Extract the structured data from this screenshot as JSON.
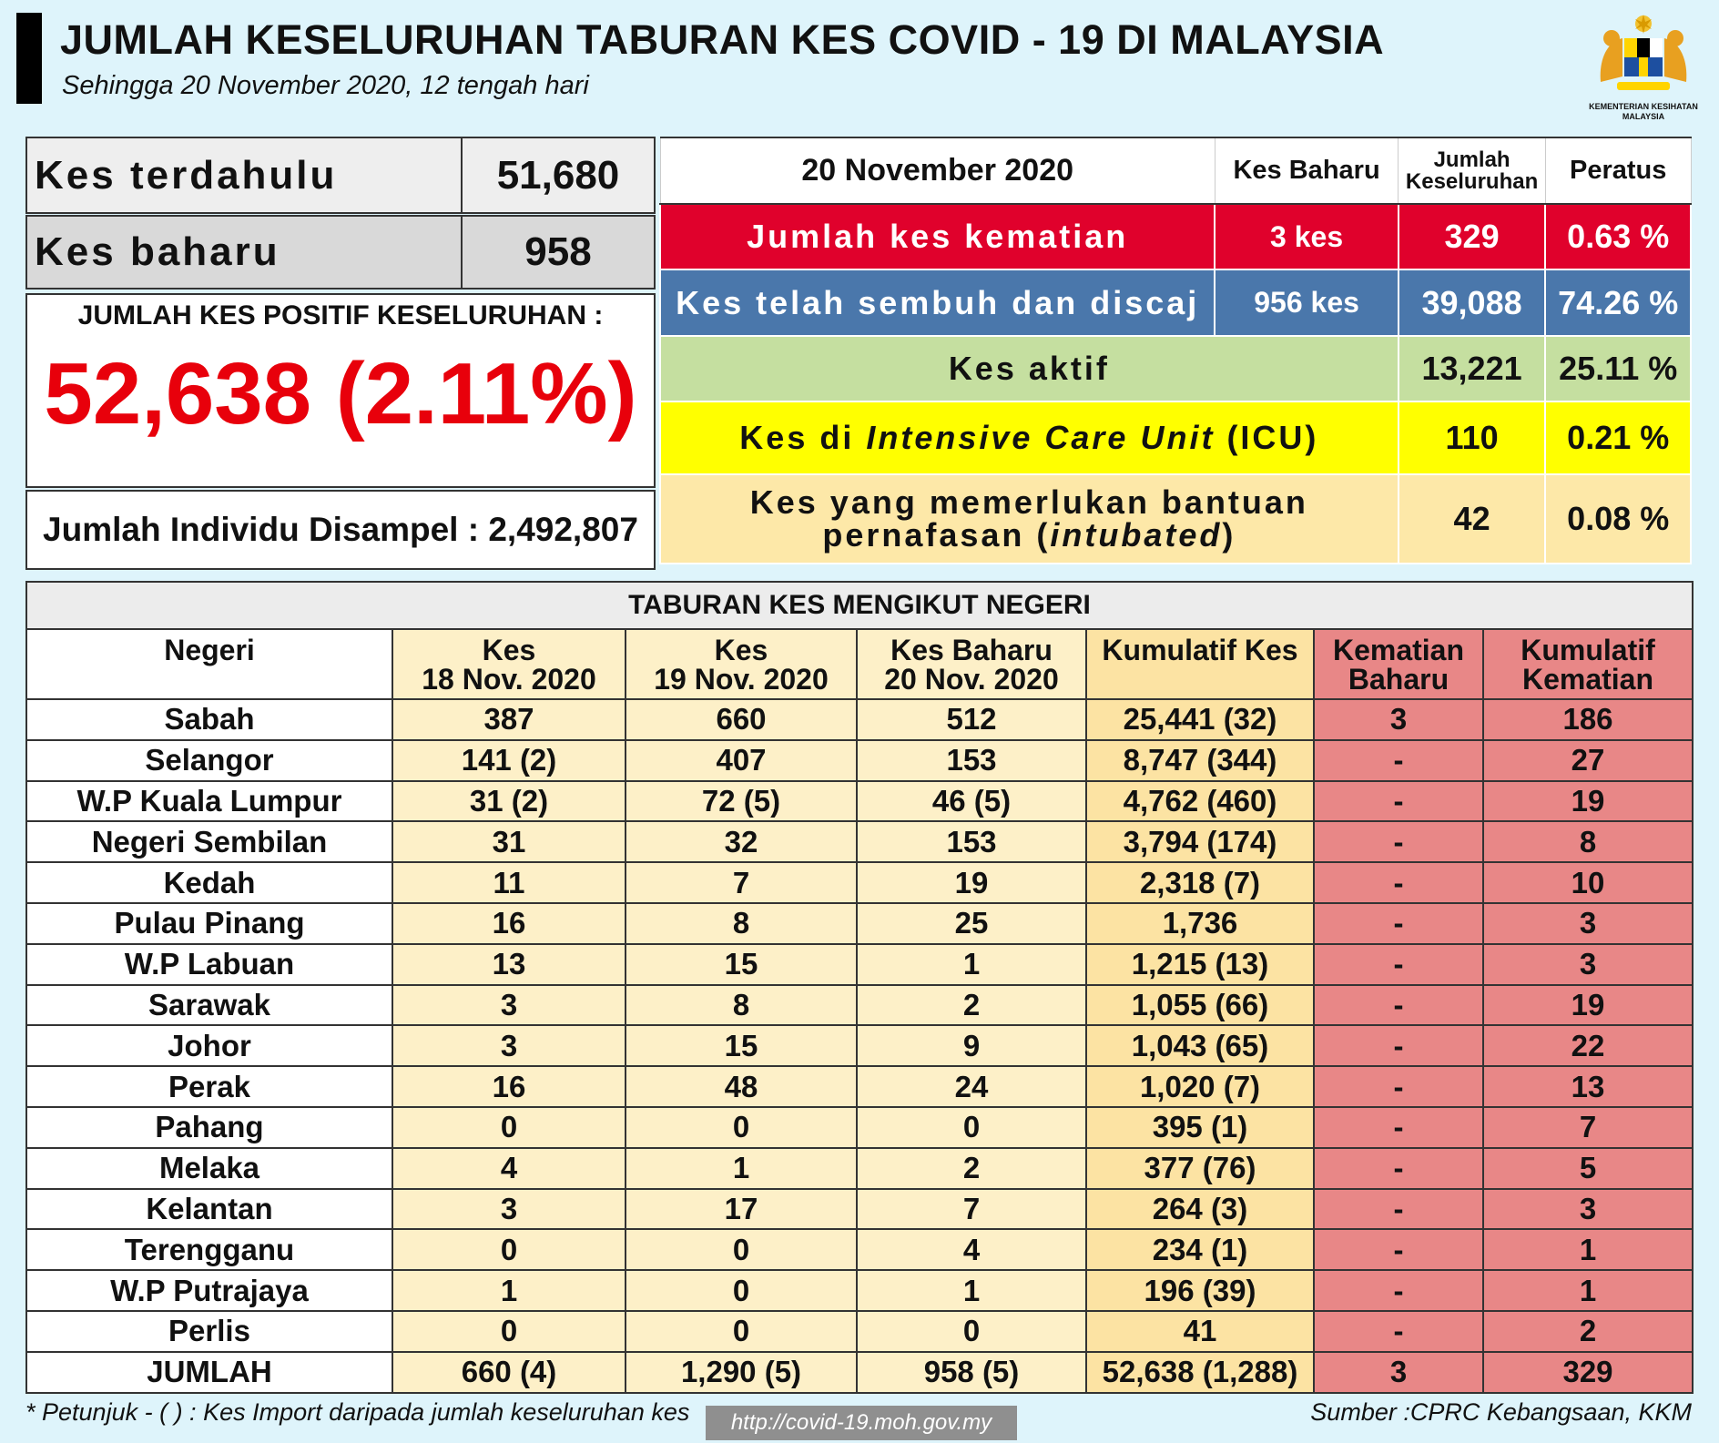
{
  "header": {
    "title": "JUMLAH KESELURUHAN TABURAN KES COVID - 19 DI MALAYSIA",
    "subtitle": "Sehingga 20 November 2020, 12 tengah hari",
    "ministry_line1": "KEMENTERIAN KESIHATAN",
    "ministry_line2": "MALAYSIA"
  },
  "summary": {
    "prev_label": "Kes terdahulu",
    "prev_value": "51,680",
    "new_label": "Kes baharu",
    "new_value": "958",
    "positive_label": "JUMLAH KES POSITIF KESELURUHAN :",
    "positive_value": "52,638 (2.11%)",
    "sampled": "Jumlah Individu Disampel : 2,492,807"
  },
  "status": {
    "date": "20 November 2020",
    "col_new": "Kes Baharu",
    "col_total_1": "Jumlah",
    "col_total_2": "Keseluruhan",
    "col_pct": "Peratus",
    "death_label": "Jumlah kes kematian",
    "death_new": "3 kes",
    "death_total": "329",
    "death_pct": "0.63 %",
    "recovered_label": "Kes telah sembuh dan discaj",
    "recovered_new": "956 kes",
    "recovered_total": "39,088",
    "recovered_pct": "74.26 %",
    "active_label": "Kes aktif",
    "active_total": "13,221",
    "active_pct": "25.11 %",
    "icu_label_a": "Kes di ",
    "icu_label_b": "Intensive Care Unit",
    "icu_label_c": " (ICU)",
    "icu_total": "110",
    "icu_pct": "0.21 %",
    "intub_line1": "Kes yang memerlukan bantuan",
    "intub_line2a": "pernafasan (",
    "intub_line2b": "intubated",
    "intub_line2c": ")",
    "intub_total": "42",
    "intub_pct": "0.08 %"
  },
  "states_table": {
    "caption": "TABURAN KES MENGIKUT NEGERI",
    "headers": [
      [
        "Negeri",
        ""
      ],
      [
        "Kes",
        "18 Nov. 2020"
      ],
      [
        "Kes",
        "19 Nov. 2020"
      ],
      [
        "Kes Baharu",
        "20 Nov. 2020"
      ],
      [
        "Kumulatif Kes",
        ""
      ],
      [
        "Kematian",
        "Baharu"
      ],
      [
        "Kumulatif",
        "Kematian"
      ]
    ],
    "rows": [
      [
        "Sabah",
        "387",
        "660",
        "512",
        "25,441 (32)",
        "3",
        "186"
      ],
      [
        "Selangor",
        "141 (2)",
        "407",
        "153",
        "8,747 (344)",
        "-",
        "27"
      ],
      [
        "W.P Kuala Lumpur",
        "31 (2)",
        "72 (5)",
        "46 (5)",
        "4,762 (460)",
        "-",
        "19"
      ],
      [
        "Negeri Sembilan",
        "31",
        "32",
        "153",
        "3,794 (174)",
        "-",
        "8"
      ],
      [
        "Kedah",
        "11",
        "7",
        "19",
        "2,318 (7)",
        "-",
        "10"
      ],
      [
        "Pulau Pinang",
        "16",
        "8",
        "25",
        "1,736",
        "-",
        "3"
      ],
      [
        "W.P Labuan",
        "13",
        "15",
        "1",
        "1,215 (13)",
        "-",
        "3"
      ],
      [
        "Sarawak",
        "3",
        "8",
        "2",
        "1,055 (66)",
        "-",
        "19"
      ],
      [
        "Johor",
        "3",
        "15",
        "9",
        "1,043 (65)",
        "-",
        "22"
      ],
      [
        "Perak",
        "16",
        "48",
        "24",
        "1,020 (7)",
        "-",
        "13"
      ],
      [
        "Pahang",
        "0",
        "0",
        "0",
        "395 (1)",
        "-",
        "7"
      ],
      [
        "Melaka",
        "4",
        "1",
        "2",
        "377 (76)",
        "-",
        "5"
      ],
      [
        "Kelantan",
        "3",
        "17",
        "7",
        "264 (3)",
        "-",
        "3"
      ],
      [
        "Terengganu",
        "0",
        "0",
        "4",
        "234 (1)",
        "-",
        "1"
      ],
      [
        "W.P Putrajaya",
        "1",
        "0",
        "1",
        "196 (39)",
        "-",
        "1"
      ],
      [
        "Perlis",
        "0",
        "0",
        "0",
        "41",
        "-",
        "2"
      ],
      [
        "JUMLAH",
        "660 (4)",
        "1,290 (5)",
        "958 (5)",
        "52,638 (1,288)",
        "3",
        "329"
      ]
    ]
  },
  "footer": {
    "note": "* Petunjuk  - (   ) : Kes Import daripada jumlah keseluruhan kes",
    "url": "http://covid-19.moh.gov.my",
    "source": "Sumber :CPRC Kebangsaan,  KKM"
  },
  "colors": {
    "background": "#def4fb",
    "death_red": "#e0012c",
    "recovered_blue": "#4a77ab",
    "active_green": "#c5dfa0",
    "icu_yellow": "#ffff00",
    "intubated_cream": "#fde8a8",
    "positive_red": "#e8000b",
    "death_col_pink": "#e88787"
  }
}
